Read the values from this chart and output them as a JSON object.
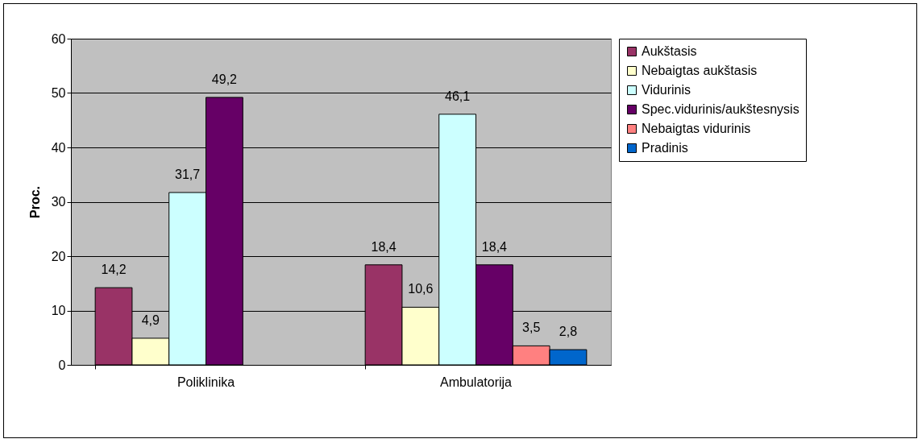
{
  "chart_data": {
    "type": "bar",
    "ylabel": "Proc.",
    "categories": [
      "Poliklinika",
      "Ambulatorija"
    ],
    "series": [
      {
        "name": "Aukštasis",
        "color": "#993366",
        "values": [
          14.2,
          18.4
        ],
        "value_labels": [
          "14,2",
          "18,4"
        ]
      },
      {
        "name": "Nebaigtas aukštasis",
        "color": "#ffffcc",
        "values": [
          4.9,
          10.6
        ],
        "value_labels": [
          "4,9",
          "10,6"
        ]
      },
      {
        "name": "Vidurinis",
        "color": "#ccffff",
        "values": [
          31.7,
          46.1
        ],
        "value_labels": [
          "31,7",
          "46,1"
        ]
      },
      {
        "name": "Spec.vidurinis/aukštesnysis",
        "color": "#660066",
        "values": [
          49.2,
          18.4
        ],
        "value_labels": [
          "49,2",
          "18,4"
        ]
      },
      {
        "name": "Nebaigtas vidurinis",
        "color": "#ff8080",
        "values": [
          null,
          3.5
        ],
        "value_labels": [
          null,
          "3,5"
        ]
      },
      {
        "name": "Pradinis",
        "color": "#0066cc",
        "values": [
          null,
          2.8
        ],
        "value_labels": [
          null,
          "2,8"
        ]
      }
    ],
    "ylim": [
      0,
      60
    ],
    "yticks": [
      0,
      10,
      20,
      30,
      40,
      50,
      60
    ],
    "grid": "y",
    "legend": "right"
  }
}
